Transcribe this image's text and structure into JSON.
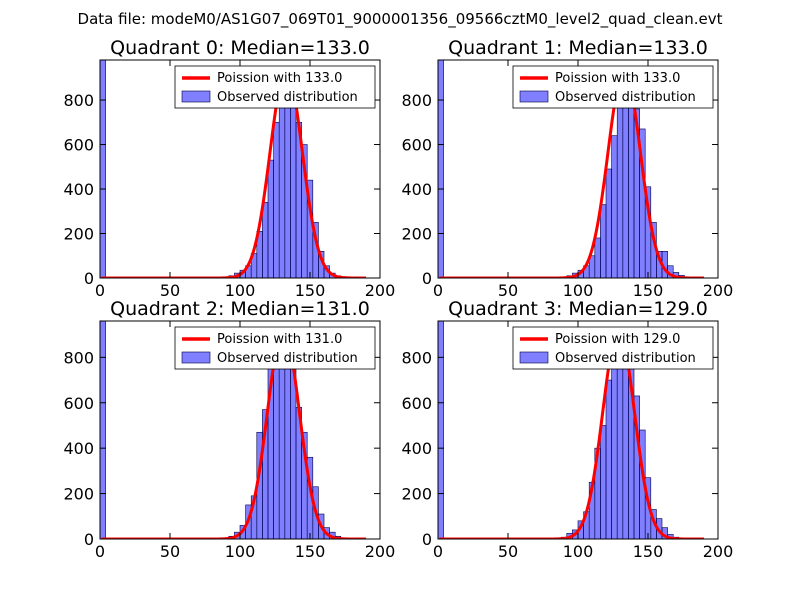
{
  "suptitle": "Data file: modeM0/AS1G07_069T01_9000001356_09566cztM0_level2_quad_clean.evt",
  "colors": {
    "bars": "#0000ff",
    "curve": "#ff0000"
  },
  "chart_data": [
    {
      "type": "bar",
      "title": "Quadrant 0: Median=133.0",
      "xlim": [
        0,
        200
      ],
      "ylim": [
        0,
        980
      ],
      "xticks": [
        "0",
        "50",
        "100",
        "150",
        "200"
      ],
      "yticks": [
        "0",
        "200",
        "400",
        "600",
        "800"
      ],
      "legend": {
        "line_label": "Poission with 133.0",
        "bar_label": "Observed distribution",
        "placement": "top-right"
      },
      "bin_width": 4,
      "bin_starts": [
        0,
        88,
        92,
        96,
        100,
        104,
        108,
        112,
        116,
        120,
        124,
        128,
        132,
        136,
        140,
        144,
        148,
        152,
        156,
        160,
        164,
        168,
        172
      ],
      "counts": [
        980,
        5,
        10,
        22,
        35,
        55,
        110,
        210,
        340,
        530,
        700,
        820,
        890,
        840,
        700,
        600,
        440,
        250,
        120,
        55,
        22,
        10,
        5
      ],
      "poisson_mean": 133.0,
      "poisson_peak": 935
    },
    {
      "type": "bar",
      "title": "Quadrant 1: Median=133.0",
      "xlim": [
        0,
        200
      ],
      "ylim": [
        0,
        980
      ],
      "xticks": [
        "0",
        "50",
        "100",
        "150",
        "200"
      ],
      "yticks": [
        "0",
        "200",
        "400",
        "600",
        "800"
      ],
      "legend": {
        "line_label": "Poission with 133.0",
        "bar_label": "Observed distribution",
        "placement": "top-right"
      },
      "bin_width": 4,
      "bin_starts": [
        0,
        92,
        96,
        100,
        104,
        108,
        112,
        116,
        120,
        124,
        128,
        132,
        136,
        140,
        144,
        148,
        152,
        156,
        160,
        164,
        168,
        172,
        176
      ],
      "counts": [
        980,
        10,
        22,
        35,
        55,
        100,
        180,
        330,
        490,
        640,
        780,
        930,
        800,
        760,
        670,
        410,
        250,
        120,
        120,
        55,
        25,
        12,
        5
      ],
      "poisson_mean": 133.0,
      "poisson_peak": 935
    },
    {
      "type": "bar",
      "title": "Quadrant 2: Median=131.0",
      "xlim": [
        0,
        200
      ],
      "ylim": [
        0,
        960
      ],
      "xticks": [
        "0",
        "50",
        "100",
        "150",
        "200"
      ],
      "yticks": [
        "0",
        "200",
        "400",
        "600",
        "800"
      ],
      "legend": {
        "line_label": "Poission with 131.0",
        "bar_label": "Observed distribution",
        "placement": "top-right"
      },
      "bin_width": 4,
      "bin_starts": [
        0,
        88,
        92,
        96,
        100,
        104,
        108,
        112,
        116,
        120,
        124,
        128,
        132,
        136,
        140,
        144,
        148,
        152,
        156,
        160,
        164,
        168,
        172
      ],
      "counts": [
        960,
        5,
        12,
        30,
        60,
        150,
        190,
        470,
        570,
        770,
        850,
        920,
        900,
        750,
        580,
        470,
        360,
        230,
        110,
        50,
        30,
        12,
        5
      ],
      "poisson_mean": 131.0,
      "poisson_peak": 920
    },
    {
      "type": "bar",
      "title": "Quadrant 3: Median=129.0",
      "xlim": [
        0,
        200
      ],
      "ylim": [
        0,
        960
      ],
      "xticks": [
        "0",
        "50",
        "100",
        "150",
        "200"
      ],
      "yticks": [
        "0",
        "200",
        "400",
        "600",
        "800"
      ],
      "legend": {
        "line_label": "Poission with 129.0",
        "bar_label": "Observed distribution",
        "placement": "top-right"
      },
      "bin_width": 4,
      "bin_starts": [
        0,
        88,
        92,
        96,
        100,
        104,
        108,
        112,
        116,
        120,
        124,
        128,
        132,
        136,
        140,
        144,
        148,
        152,
        156,
        160,
        164,
        168,
        172
      ],
      "counts": [
        960,
        8,
        25,
        40,
        80,
        120,
        250,
        400,
        500,
        700,
        800,
        930,
        880,
        800,
        630,
        480,
        270,
        130,
        90,
        50,
        20,
        8,
        4
      ],
      "poisson_mean": 129.0,
      "poisson_peak": 920
    }
  ]
}
